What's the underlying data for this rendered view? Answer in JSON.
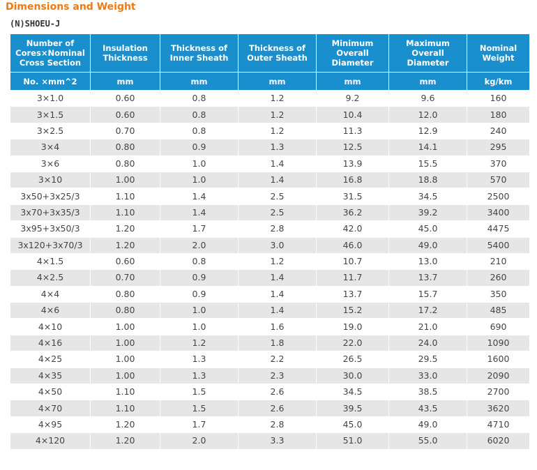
{
  "title": "Dimensions and Weight",
  "subtitle": "(N)SHOEU-J",
  "table": {
    "headers": [
      "Number of Cores×Nominal Cross Section",
      "Insulation Thickness",
      "Thickness of Inner Sheath",
      "Thickness of Outer Sheath",
      "Minimum Overall Diameter",
      "Maximum Overall Diameter",
      "Nominal Weight"
    ],
    "units": [
      "No. ×mm^2",
      "mm",
      "mm",
      "mm",
      "mm",
      "mm",
      "kg/km"
    ],
    "rows": [
      [
        "3×1.0",
        "0.60",
        "0.8",
        "1.2",
        "9.2",
        "9.6",
        "160"
      ],
      [
        "3×1.5",
        "0.60",
        "0.8",
        "1.2",
        "10.4",
        "12.0",
        "180"
      ],
      [
        "3×2.5",
        "0.70",
        "0.8",
        "1.2",
        "11.3",
        "12.9",
        "240"
      ],
      [
        "3×4",
        "0.80",
        "0.9",
        "1.3",
        "12.5",
        "14.1",
        "295"
      ],
      [
        "3×6",
        "0.80",
        "1.0",
        "1.4",
        "13.9",
        "15.5",
        "370"
      ],
      [
        "3×10",
        "1.00",
        "1.0",
        "1.4",
        "16.8",
        "18.8",
        "570"
      ],
      [
        "3x50+3x25/3",
        "1.10",
        "1.4",
        "2.5",
        "31.5",
        "34.5",
        "2500"
      ],
      [
        "3x70+3x35/3",
        "1.10",
        "1.4",
        "2.5",
        "36.2",
        "39.2",
        "3400"
      ],
      [
        "3x95+3x50/3",
        "1.20",
        "1.7",
        "2.8",
        "42.0",
        "45.0",
        "4475"
      ],
      [
        "3x120+3x70/3",
        "1.20",
        "2.0",
        "3.0",
        "46.0",
        "49.0",
        "5400"
      ],
      [
        "4×1.5",
        "0.60",
        "0.8",
        "1.2",
        "10.7",
        "13.0",
        "210"
      ],
      [
        "4×2.5",
        "0.70",
        "0.9",
        "1.4",
        "11.7",
        "13.7",
        "260"
      ],
      [
        "4×4",
        "0.80",
        "0.9",
        "1.4",
        "13.7",
        "15.7",
        "350"
      ],
      [
        "4×6",
        "0.80",
        "1.0",
        "1.4",
        "15.2",
        "17.2",
        "485"
      ],
      [
        "4×10",
        "1.00",
        "1.0",
        "1.6",
        "19.0",
        "21.0",
        "690"
      ],
      [
        "4×16",
        "1.00",
        "1.2",
        "1.8",
        "22.0",
        "24.0",
        "1090"
      ],
      [
        "4×25",
        "1.00",
        "1.3",
        "2.2",
        "26.5",
        "29.5",
        "1600"
      ],
      [
        "4×35",
        "1.00",
        "1.3",
        "2.3",
        "30.0",
        "33.0",
        "2090"
      ],
      [
        "4×50",
        "1.10",
        "1.5",
        "2.6",
        "34.5",
        "38.5",
        "2700"
      ],
      [
        "4×70",
        "1.10",
        "1.5",
        "2.6",
        "39.5",
        "43.5",
        "3620"
      ],
      [
        "4×95",
        "1.20",
        "1.7",
        "2.8",
        "45.0",
        "49.0",
        "4710"
      ],
      [
        "4×120",
        "1.20",
        "2.0",
        "3.3",
        "51.0",
        "55.0",
        "6020"
      ]
    ]
  },
  "colors": {
    "title": "#f07a12",
    "header_bg": "#1a8fcd",
    "header_text": "#ffffff",
    "row_alt_bg": "#e6e6e6"
  }
}
